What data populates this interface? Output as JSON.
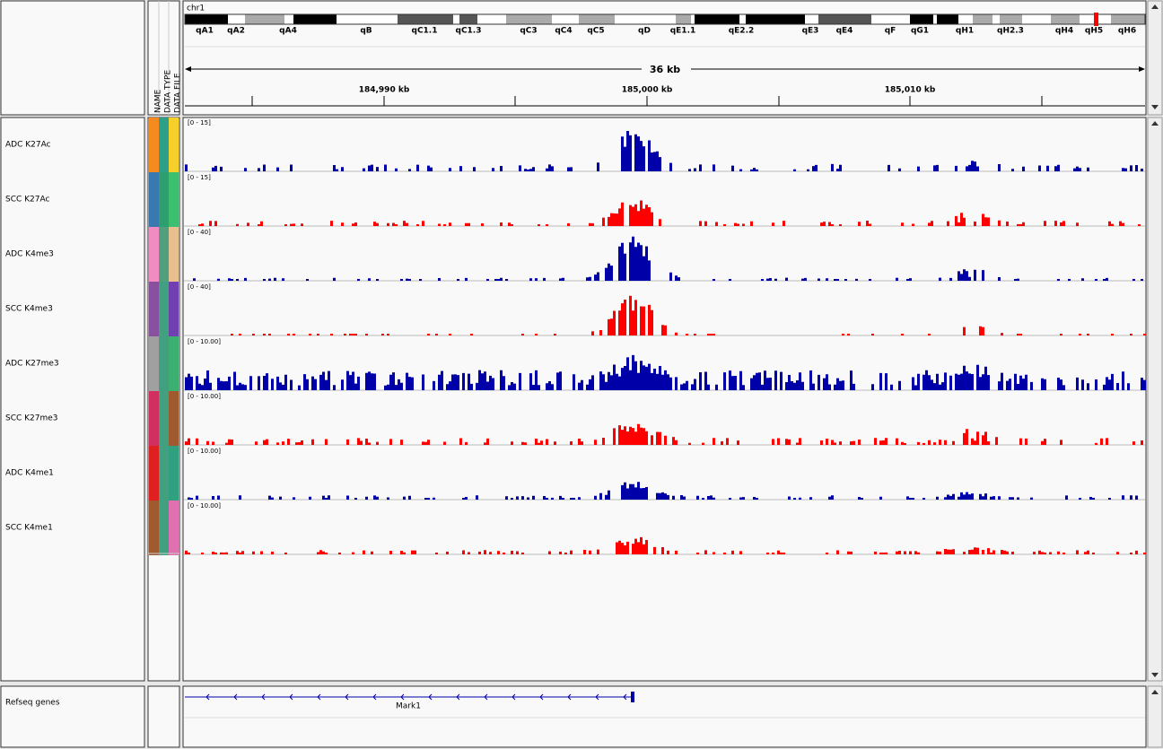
{
  "header": {
    "chromosome": "chr1",
    "bands": [
      "qA1",
      "qA2",
      "qA4",
      "qB",
      "qC1.1",
      "qC1.3",
      "qC3",
      "qC4",
      "qC5",
      "qD",
      "qE1.1",
      "qE2.2",
      "qE3",
      "qE4",
      "qF",
      "qG1",
      "qH1",
      "qH2.3",
      "qH4",
      "qH5",
      "qH6"
    ],
    "span": "36 kb",
    "ruler_labels": [
      "184,990 kb",
      "185,000 kb",
      "185,010 kb"
    ]
  },
  "attributes": {
    "headers": [
      "NAME",
      "DATA TYPE",
      "DATA FILE"
    ]
  },
  "tracks": [
    {
      "name": "ADC K27Ac",
      "range": "[0 - 15]"
    },
    {
      "name": "SCC K27Ac",
      "range": "[0 - 15]"
    },
    {
      "name": "ADC K4me3",
      "range": "[0 - 40]"
    },
    {
      "name": "SCC K4me3",
      "range": "[0 - 40]"
    },
    {
      "name": "ADC K27me3",
      "range": "[0 - 10.00]"
    },
    {
      "name": "SCC K27me3",
      "range": "[0 - 10.00]"
    },
    {
      "name": "ADC K4me1",
      "range": "[0 - 10.00]"
    },
    {
      "name": "SCC K4me1",
      "range": "[0 - 10.00]"
    }
  ],
  "gene_track": {
    "name": "Refseq genes",
    "gene": "Mark1"
  }
}
